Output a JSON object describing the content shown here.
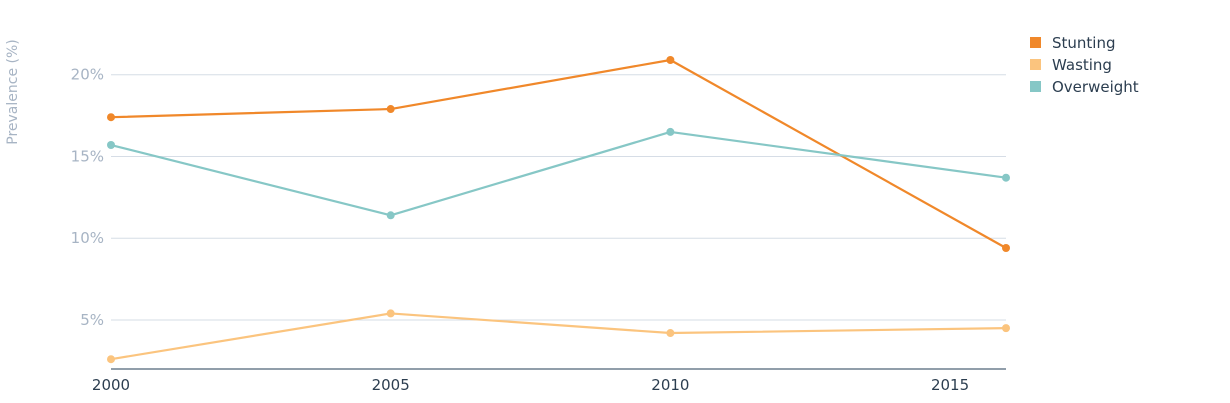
{
  "chart_data": {
    "type": "line",
    "title": "",
    "xlabel": "",
    "ylabel": "Prevalence (%)",
    "x": [
      2000,
      2005,
      2010,
      2016
    ],
    "xticks": [
      2000,
      2005,
      2010,
      2015
    ],
    "xlim": [
      2000,
      2016
    ],
    "ylim": [
      2,
      22
    ],
    "yticks": [
      5,
      10,
      15,
      20
    ],
    "ytick_labels": [
      "5%",
      "10%",
      "15%",
      "20%"
    ],
    "grid": true,
    "legend_position": "top-right",
    "series": [
      {
        "name": "Stunting",
        "color": "#f0882a",
        "values": [
          17.4,
          17.9,
          20.9,
          9.4
        ]
      },
      {
        "name": "Wasting",
        "color": "#fbc47e",
        "values": [
          2.6,
          5.4,
          4.2,
          4.5
        ]
      },
      {
        "name": "Overweight",
        "color": "#86c7c6",
        "values": [
          15.7,
          11.4,
          16.5,
          13.7
        ]
      }
    ]
  }
}
